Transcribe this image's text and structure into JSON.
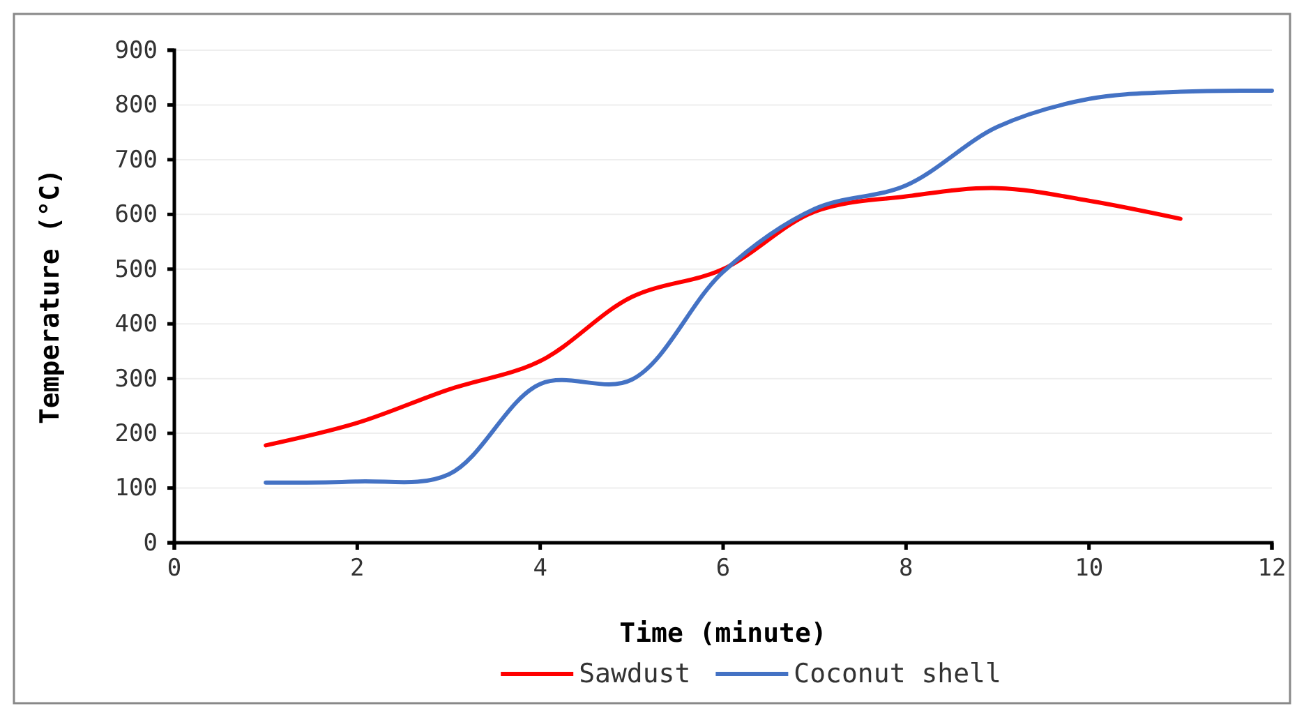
{
  "chart_data": {
    "type": "line",
    "xlabel": "Time (minute)",
    "ylabel": "Temperature (°C)",
    "series": [
      {
        "name": "Sawdust",
        "color": "#ff0000",
        "x": [
          1,
          2,
          3,
          4,
          5,
          6,
          7,
          8,
          9,
          10,
          11
        ],
        "values": [
          178,
          219,
          280,
          332,
          449,
          500,
          605,
          633,
          648,
          625,
          592
        ]
      },
      {
        "name": "Coconut shell",
        "color": "#4472c4",
        "x": [
          1,
          2,
          3,
          4,
          5,
          6,
          7,
          8,
          9,
          10,
          11,
          12
        ],
        "values": [
          110,
          112,
          125,
          290,
          298,
          495,
          610,
          653,
          760,
          811,
          824,
          826
        ]
      }
    ],
    "xlim": [
      0,
      12
    ],
    "xticks": [
      0,
      2,
      4,
      6,
      8,
      10,
      12
    ],
    "ylim": [
      0,
      900
    ],
    "yticks": [
      0,
      100,
      200,
      300,
      400,
      500,
      600,
      700,
      800,
      900
    ],
    "grid": "y",
    "legend": "bottom",
    "marker": "none",
    "line_style": "solid"
  }
}
